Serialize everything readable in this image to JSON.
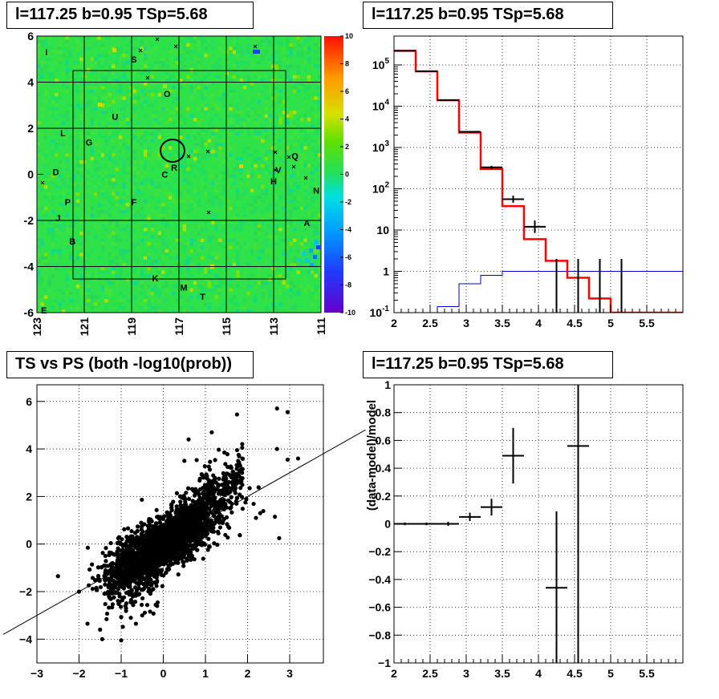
{
  "chart_data": [
    {
      "id": "skymap",
      "type": "heatmap",
      "title": "l=117.25 b=0.95 TSp=5.68",
      "x_ticks": [
        "123",
        "121",
        "119",
        "117",
        "115",
        "113",
        "111"
      ],
      "y_ticks": [
        "6",
        "4",
        "2",
        "0",
        "-2",
        "-4",
        "-6"
      ],
      "xlim": [
        123,
        111
      ],
      "ylim": [
        -6,
        6
      ],
      "z_ticks": [
        "10",
        "8",
        "6",
        "4",
        "2",
        "0",
        "-2",
        "-4",
        "-6",
        "-8",
        "-10"
      ],
      "zlim": [
        -10,
        10
      ],
      "source_labels": [
        {
          "text": "I",
          "l": 122.6,
          "b": 5.3
        },
        {
          "text": "S",
          "l": 118.9,
          "b": 5.0
        },
        {
          "text": "O",
          "l": 117.5,
          "b": 3.5
        },
        {
          "text": "U",
          "l": 119.7,
          "b": 2.5
        },
        {
          "text": "L",
          "l": 121.9,
          "b": 1.8
        },
        {
          "text": "G",
          "l": 120.8,
          "b": 1.4
        },
        {
          "text": "R",
          "l": 117.2,
          "b": 0.3
        },
        {
          "text": "C",
          "l": 117.6,
          "b": 0.0
        },
        {
          "text": "Q",
          "l": 112.1,
          "b": 0.8
        },
        {
          "text": "V",
          "l": 112.8,
          "b": 0.2
        },
        {
          "text": "H",
          "l": 113.0,
          "b": -0.3
        },
        {
          "text": "D",
          "l": 122.2,
          "b": 0.1
        },
        {
          "text": "N",
          "l": 111.2,
          "b": -0.7
        },
        {
          "text": "F",
          "l": 118.9,
          "b": -1.2
        },
        {
          "text": "P",
          "l": 121.7,
          "b": -1.2
        },
        {
          "text": "J",
          "l": 122.1,
          "b": -1.9
        },
        {
          "text": "A",
          "l": 111.6,
          "b": -2.1
        },
        {
          "text": "B",
          "l": 121.5,
          "b": -2.9
        },
        {
          "text": "K",
          "l": 118.0,
          "b": -4.5
        },
        {
          "text": "M",
          "l": 116.8,
          "b": -4.9
        },
        {
          "text": "T",
          "l": 116.0,
          "b": -5.3
        },
        {
          "text": "E",
          "l": 122.7,
          "b": -5.9
        }
      ],
      "grid_l": [
        121,
        119,
        117,
        115,
        113
      ],
      "grid_b": [
        4,
        2,
        -2,
        -4
      ]
    },
    {
      "id": "spectrum",
      "type": "line",
      "title": "l=117.25 b=0.95 TSp=5.68",
      "xlim": [
        2,
        6
      ],
      "ylim": [
        0.1,
        500000
      ],
      "log_y": true,
      "x_ticks": [
        "2",
        "2.5",
        "3",
        "3.5",
        "4",
        "4.5",
        "5",
        "5.5"
      ],
      "y_ticks": [
        "10^-1",
        "1",
        "10",
        "10^2",
        "10^3",
        "10^4",
        "10^5"
      ],
      "model_red": {
        "edges": [
          2.0,
          2.3,
          2.6,
          2.9,
          3.2,
          3.5,
          3.8,
          4.1,
          4.4,
          4.7,
          5.0,
          5.3,
          6.0
        ],
        "values": [
          220000,
          70000,
          14000,
          2300,
          300,
          38,
          6,
          1.8,
          0.7,
          0.22,
          0.1,
          0.1
        ]
      },
      "model_blue": {
        "edges": [
          2.3,
          2.6,
          2.9,
          3.2,
          3.5,
          3.8,
          4.1,
          4.4,
          4.7,
          5.0,
          5.3,
          6.0
        ],
        "values": [
          0.1,
          0.14,
          0.5,
          0.8,
          1.0,
          1.0,
          1.0,
          1.0,
          1.0,
          1.0,
          1.0
        ]
      },
      "data_points": [
        {
          "x": 2.15,
          "y": 220000,
          "xerr": 0.15
        },
        {
          "x": 2.45,
          "y": 70000,
          "xerr": 0.15
        },
        {
          "x": 2.75,
          "y": 14000,
          "xerr": 0.15
        },
        {
          "x": 3.05,
          "y": 2400,
          "xerr": 0.15
        },
        {
          "x": 3.35,
          "y": 330,
          "xerr": 0.15,
          "ylo": 300,
          "yhi": 360
        },
        {
          "x": 3.65,
          "y": 56,
          "xerr": 0.15,
          "ylo": 46,
          "yhi": 68
        },
        {
          "x": 3.95,
          "y": 12,
          "xerr": 0.15,
          "ylo": 8.5,
          "yhi": 17
        },
        {
          "x": 4.25,
          "y": 1,
          "xerr": 0,
          "ylo": 0.1,
          "yhi": 2
        },
        {
          "x": 4.55,
          "y": 1,
          "xerr": 0,
          "ylo": 0.1,
          "yhi": 2
        },
        {
          "x": 4.85,
          "y": 1,
          "xerr": 0,
          "ylo": 0.1,
          "yhi": 2
        },
        {
          "x": 5.15,
          "y": 1,
          "xerr": 0,
          "ylo": 0.1,
          "yhi": 2
        }
      ]
    },
    {
      "id": "scatter",
      "type": "scatter",
      "title": "TS vs PS (both -log10(prob))",
      "xlim": [
        -3,
        3.8
      ],
      "ylim": [
        -5,
        6.7
      ],
      "x_ticks": [
        "-3",
        "-2",
        "-1",
        "0",
        "1",
        "2",
        "3"
      ],
      "y_ticks": [
        "-4",
        "-2",
        "0",
        "2",
        "4",
        "6"
      ],
      "fit_line": {
        "slope": 1.0,
        "intercept": 0.0
      },
      "outliers": [
        [
          2.7,
          5.7
        ],
        [
          2.95,
          5.55
        ],
        [
          1.75,
          5.45
        ],
        [
          1.15,
          4.7
        ],
        [
          1.75,
          3.95
        ],
        [
          2.7,
          4.0
        ],
        [
          2.95,
          3.55
        ],
        [
          3.2,
          3.6
        ],
        [
          -2.5,
          -1.35
        ],
        [
          -2.0,
          -2.0
        ],
        [
          -1.5,
          -3.6
        ],
        [
          -1.45,
          -4.0
        ],
        [
          -1.0,
          -4.05
        ],
        [
          -1.8,
          -3.35
        ],
        [
          2.75,
          0.25
        ],
        [
          2.65,
          1.15
        ],
        [
          2.3,
          1.3
        ],
        [
          1.95,
          1.75
        ],
        [
          2.2,
          1.1
        ],
        [
          0.5,
          3.5
        ],
        [
          0.6,
          4.4
        ],
        [
          -0.65,
          -3.35
        ],
        [
          -0.9,
          -2.6
        ],
        [
          -0.5,
          -3.0
        ],
        [
          1.45,
          3.85
        ],
        [
          2.05,
          2.35
        ]
      ]
    },
    {
      "id": "residual",
      "type": "line",
      "title": "l=117.25 b=0.95 TSp=5.68",
      "xlim": [
        2,
        6
      ],
      "ylim": [
        -1,
        1
      ],
      "ylabel": "(data-model)/model",
      "x_ticks": [
        "2",
        "2.5",
        "3",
        "3.5",
        "4",
        "4.5",
        "5",
        "5.5"
      ],
      "y_ticks": [
        "-1",
        "-0.8",
        "-0.6",
        "-0.4",
        "-0.2",
        "0",
        "0.2",
        "0.4",
        "0.6",
        "0.8",
        "1"
      ],
      "points": [
        {
          "x": 2.15,
          "y": 0.0,
          "xerr": 0.15,
          "yerr": 0.01
        },
        {
          "x": 2.45,
          "y": 0.0,
          "xerr": 0.15,
          "yerr": 0.01
        },
        {
          "x": 2.75,
          "y": 0.0,
          "xerr": 0.15,
          "yerr": 0.015
        },
        {
          "x": 3.05,
          "y": 0.05,
          "xerr": 0.15,
          "yerr": 0.03
        },
        {
          "x": 3.35,
          "y": 0.12,
          "xerr": 0.15,
          "yerr": 0.06
        },
        {
          "x": 3.65,
          "y": 0.49,
          "xerr": 0.15,
          "yerr": 0.2
        },
        {
          "x": 4.25,
          "y": -0.46,
          "xerr": 0.15,
          "yerr": 0.55
        },
        {
          "x": 4.55,
          "y": 0.56,
          "xerr": 0.15,
          "yerr": 1.6
        }
      ]
    }
  ],
  "colors": {
    "heat_bg": "#2ee24a",
    "model_red": "#ff0000",
    "model_blue": "#0000cc",
    "ink": "#000000"
  }
}
